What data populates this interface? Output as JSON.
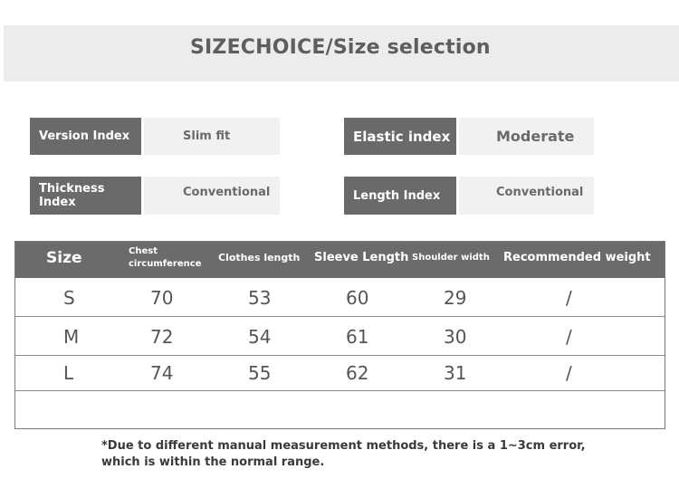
{
  "header": {
    "title": "SIZECHOICE/Size selection"
  },
  "indices": {
    "version": {
      "label": "Version Index",
      "value": "Slim fit"
    },
    "elastic": {
      "label": "Elastic index",
      "value": "Moderate"
    },
    "thickness": {
      "label": "Thickness Index",
      "value": "Conventional"
    },
    "length": {
      "label": "Length Index",
      "value": "Conventional"
    }
  },
  "table": {
    "headers": {
      "size": "Size",
      "chest_line1": "Chest",
      "chest_line2": "circumference",
      "clothes_length": "Clothes length",
      "sleeve_length": "Sleeve Length",
      "shoulder_width": "Shoulder width",
      "recommended_weight": "Recommended weight"
    },
    "rows": [
      {
        "size": "S",
        "chest": "70",
        "clothes": "53",
        "sleeve": "60",
        "shoulder": "29",
        "weight": "/"
      },
      {
        "size": "M",
        "chest": "72",
        "clothes": "54",
        "sleeve": "61",
        "shoulder": "30",
        "weight": "/"
      },
      {
        "size": "L",
        "chest": "74",
        "clothes": "55",
        "sleeve": "62",
        "shoulder": "31",
        "weight": "/"
      }
    ]
  },
  "note": {
    "line1": "*Due to different manual measurement methods, there is a 1~3cm error,",
    "line2": "which is within the normal range."
  },
  "colors": {
    "label_bg": "#6a6a6a",
    "value_bg": "#f1f1f1",
    "banner_bg": "#ececec",
    "header_bg": "#6b6b6b"
  }
}
